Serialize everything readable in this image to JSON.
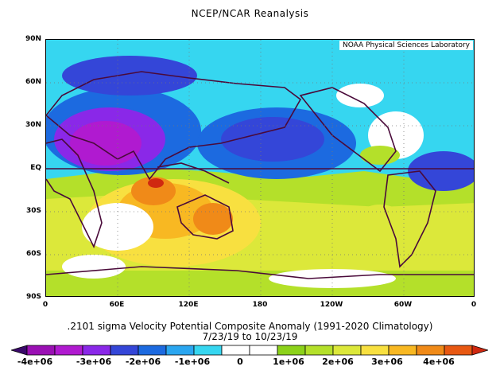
{
  "title": "NCEP/NCAR Reanalysis",
  "credit": "NOAA Physical Sciences Laboratory",
  "lat_labels": [
    "90N",
    "60N",
    "30N",
    "EQ",
    "30S",
    "60S",
    "90S"
  ],
  "lon_labels": [
    "0",
    "60E",
    "120E",
    "180",
    "120W",
    "60W",
    "0"
  ],
  "caption_line1": ".2101 sigma Velocity Potential  Composite Anomaly (1991-2020 Climatology)",
  "caption_line2": "7/23/19  to 10/23/19",
  "colorbar": {
    "tick_labels": [
      "-4e+06",
      "-3e+06",
      "-2e+06",
      "-1e+06",
      "0",
      "1e+06",
      "2e+06",
      "3e+06",
      "4e+06"
    ],
    "colors": [
      "#3a0a6a",
      "#9a10b4",
      "#b01ad0",
      "#8a28e8",
      "#3446d8",
      "#1c6ae0",
      "#2aa6f0",
      "#36d6f0",
      "#ffffff",
      "#ffffff",
      "#8cd21a",
      "#b4e02a",
      "#dce83a",
      "#f8e040",
      "#f8b822",
      "#f08a18",
      "#e85812",
      "#d02810"
    ]
  }
}
